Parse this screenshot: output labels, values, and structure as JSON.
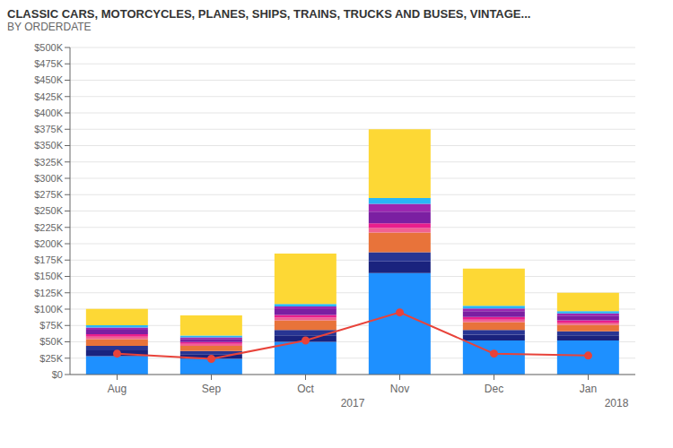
{
  "chart_data": {
    "type": "bar",
    "title": "CLASSIC CARS, MOTORCYCLES, PLANES, SHIPS, TRAINS, TRUCKS AND BUSES, VINTAGE...",
    "subtitle": "BY ORDERDATE",
    "categories": [
      "Aug",
      "Sep",
      "Oct",
      "Nov",
      "Dec",
      "Jan"
    ],
    "series": [
      {
        "color": "#1e90ff",
        "values": [
          28000,
          24000,
          50000,
          155000,
          52000,
          52000
        ]
      },
      {
        "color": "#1a237e",
        "values": [
          9000,
          7000,
          10000,
          18000,
          9000,
          8000
        ]
      },
      {
        "color": "#283593",
        "values": [
          7000,
          5000,
          8000,
          14000,
          7000,
          6000
        ]
      },
      {
        "color": "#e8733a",
        "values": [
          10000,
          8000,
          15000,
          30000,
          12000,
          10000
        ]
      },
      {
        "color": "#f06292",
        "values": [
          4000,
          3000,
          4000,
          7000,
          4000,
          3500
        ]
      },
      {
        "color": "#e91e8c",
        "values": [
          3500,
          2500,
          4000,
          7000,
          4000,
          3500
        ]
      },
      {
        "color": "#7b1fa2",
        "values": [
          7000,
          5000,
          9000,
          18000,
          9000,
          7000
        ]
      },
      {
        "color": "#9c27b0",
        "values": [
          3500,
          2500,
          4000,
          12000,
          4000,
          3500
        ]
      },
      {
        "color": "#29b6f6",
        "values": [
          3500,
          2500,
          4000,
          9000,
          4000,
          3500
        ]
      },
      {
        "color": "#fdd835",
        "values": [
          25000,
          31000,
          77000,
          105000,
          57000,
          28000
        ]
      },
      {
        "type": "line",
        "color": "#e8433a",
        "marker": "o",
        "values": [
          32000,
          24000,
          52000,
          95000,
          32000,
          29000
        ]
      }
    ],
    "stacked": true,
    "ylim": [
      0,
      500000
    ],
    "yticks": [
      {
        "value": 0,
        "label": "$0"
      },
      {
        "value": 25000,
        "label": "$25K"
      },
      {
        "value": 50000,
        "label": "$50K"
      },
      {
        "value": 75000,
        "label": "$75K"
      },
      {
        "value": 100000,
        "label": "$100K"
      },
      {
        "value": 125000,
        "label": "$125K"
      },
      {
        "value": 150000,
        "label": "$150K"
      },
      {
        "value": 175000,
        "label": "$175K"
      },
      {
        "value": 200000,
        "label": "$200K"
      },
      {
        "value": 225000,
        "label": "$225K"
      },
      {
        "value": 250000,
        "label": "$250K"
      },
      {
        "value": 275000,
        "label": "$275K"
      },
      {
        "value": 300000,
        "label": "$300K"
      },
      {
        "value": 325000,
        "label": "$325K"
      },
      {
        "value": 350000,
        "label": "$350K"
      },
      {
        "value": 375000,
        "label": "$375K"
      },
      {
        "value": 400000,
        "label": "$400K"
      },
      {
        "value": 425000,
        "label": "$425K"
      },
      {
        "value": 450000,
        "label": "$450K"
      },
      {
        "value": 475000,
        "label": "$475K"
      },
      {
        "value": 500000,
        "label": "$500K"
      }
    ],
    "grid": true,
    "annotations": [
      "2017",
      "2018"
    ]
  }
}
